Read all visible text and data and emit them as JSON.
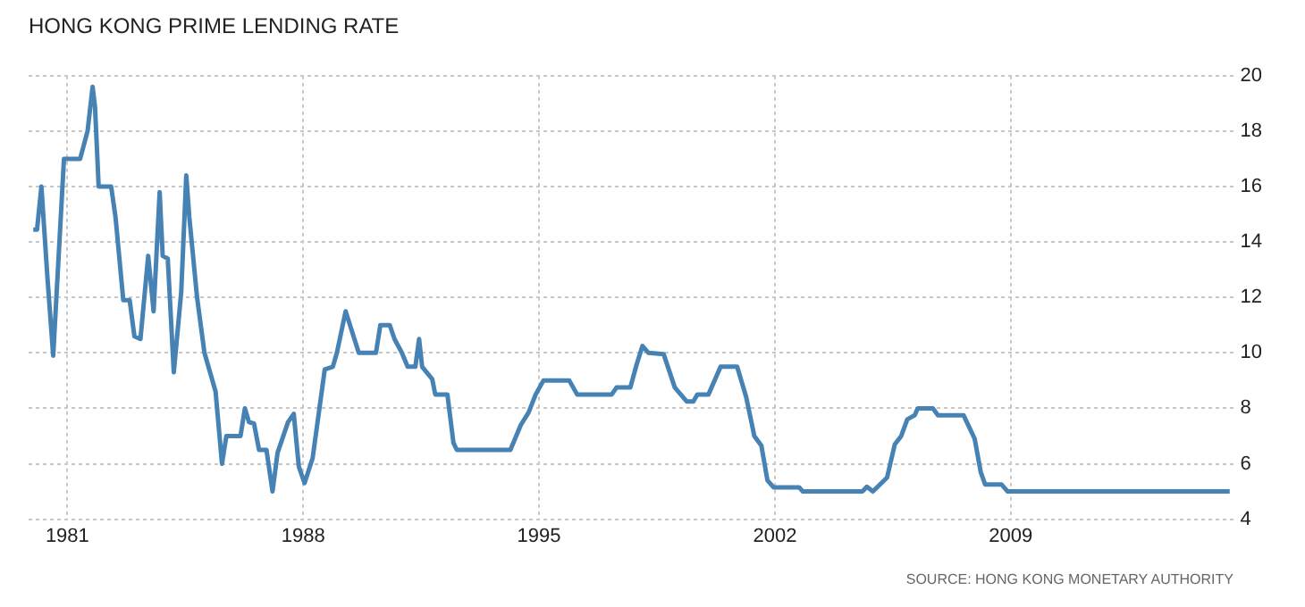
{
  "chart_data": {
    "type": "line",
    "title": "HONG KONG PRIME LENDING RATE",
    "annotations": [
      "SOURCE: HONG KONG MONETARY AUTHORITY"
    ],
    "x": [
      1979.99,
      1980.1,
      1980.23,
      1980.41,
      1980.58,
      1980.9,
      1981.38,
      1981.6,
      1981.75,
      1981.82,
      1981.93,
      1982.3,
      1982.43,
      1982.66,
      1982.85,
      1982.99,
      1983.17,
      1983.4,
      1983.56,
      1983.74,
      1983.83,
      1983.98,
      1984.16,
      1984.38,
      1984.53,
      1984.62,
      1984.85,
      1985.07,
      1985.4,
      1985.59,
      1985.72,
      1986.14,
      1986.27,
      1986.39,
      1986.54,
      1986.69,
      1986.91,
      1987.09,
      1987.24,
      1987.55,
      1987.72,
      1987.87,
      1988.04,
      1988.28,
      1988.64,
      1988.88,
      1989.0,
      1989.26,
      1989.65,
      1990.16,
      1990.29,
      1990.57,
      1990.71,
      1990.93,
      1991.1,
      1991.33,
      1991.44,
      1991.53,
      1991.83,
      1991.92,
      1992.28,
      1992.46,
      1992.56,
      1994.15,
      1994.46,
      1994.69,
      1994.9,
      1995.13,
      1995.9,
      1996.13,
      1997.16,
      1997.3,
      1997.71,
      1997.89,
      1998.07,
      1998.25,
      1998.7,
      1999.03,
      1999.38,
      1999.58,
      1999.7,
      2000.03,
      2000.39,
      2000.88,
      2001.15,
      2001.39,
      2001.6,
      2001.78,
      2001.96,
      2002.72,
      2002.83,
      2004.6,
      2004.73,
      2004.91,
      2005.33,
      2005.56,
      2005.75,
      2005.93,
      2006.15,
      2006.24,
      2006.69,
      2006.84,
      2007.6,
      2007.93,
      2008.11,
      2008.24,
      2008.73,
      2008.91,
      2015.5
    ],
    "series": [
      {
        "color": "#4682b4",
        "values": [
          14.45,
          14.45,
          16.0,
          12.7,
          9.9,
          17.0,
          17.0,
          18.0,
          19.6,
          18.9,
          16.0,
          16.0,
          14.9,
          11.9,
          11.9,
          10.6,
          10.5,
          13.5,
          11.5,
          15.8,
          13.5,
          13.4,
          9.3,
          12.2,
          16.4,
          14.9,
          12.0,
          10.0,
          8.6,
          6.0,
          7.0,
          7.0,
          8.0,
          7.5,
          7.45,
          6.5,
          6.5,
          5.0,
          6.4,
          7.5,
          7.8,
          5.9,
          5.3,
          6.2,
          9.4,
          9.5,
          10.0,
          11.5,
          10.0,
          10.0,
          11.0,
          11.0,
          10.5,
          10.0,
          9.5,
          9.5,
          10.5,
          9.5,
          9.05,
          8.5,
          8.5,
          6.75,
          6.5,
          6.5,
          7.4,
          7.85,
          8.5,
          9.0,
          9.0,
          8.5,
          8.5,
          8.75,
          8.75,
          9.55,
          10.25,
          10.0,
          9.95,
          8.75,
          8.25,
          8.25,
          8.5,
          8.5,
          9.5,
          9.5,
          8.4,
          7.0,
          6.65,
          5.4,
          5.15,
          5.15,
          5.0,
          5.0,
          5.17,
          5.0,
          5.5,
          6.7,
          7.0,
          7.6,
          7.75,
          8.0,
          8.0,
          7.75,
          7.75,
          6.9,
          5.7,
          5.25,
          5.25,
          5.0,
          5.0
        ]
      }
    ],
    "xlim": [
      1979.85,
      2015.6
    ],
    "xticks": [
      1981,
      1988,
      1995,
      2002,
      2009
    ],
    "ylim": [
      4,
      20
    ],
    "yticks": [
      4,
      6,
      8,
      10,
      12,
      14,
      16,
      18,
      20
    ],
    "grid": true,
    "legend": false,
    "marker": "none",
    "line_style": "solid"
  }
}
